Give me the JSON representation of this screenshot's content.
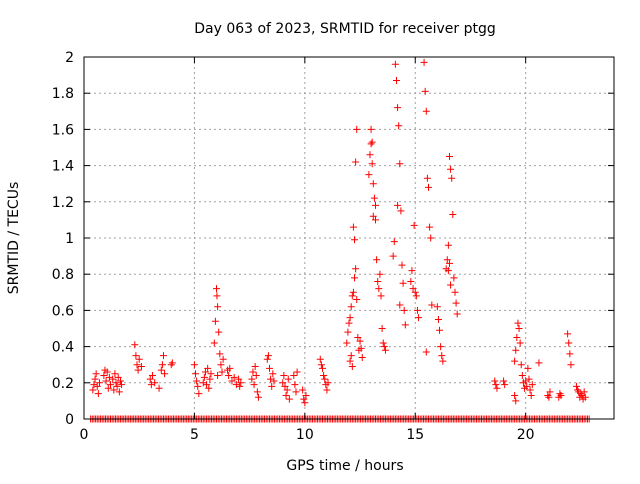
{
  "chart_data": {
    "type": "scatter",
    "title": "Day 063 of 2023, SRMTID for receiver ptgg",
    "xlabel": "GPS time / hours",
    "ylabel": "SRMTID / TECUs",
    "xlim": [
      0,
      24
    ],
    "ylim": [
      0,
      2
    ],
    "xticks": [
      0,
      5,
      10,
      15,
      20
    ],
    "xtick_labels": [
      "0",
      "5",
      "10",
      "15",
      "20"
    ],
    "yticks": [
      0,
      0.2,
      0.4,
      0.6,
      0.8,
      1,
      1.2,
      1.4,
      1.6,
      1.8,
      2
    ],
    "ytick_labels": [
      "0",
      "0.2",
      "0.4",
      "0.6",
      "0.8",
      "1",
      "1.2",
      "1.4",
      "1.6",
      "1.8",
      "2"
    ],
    "grid": true,
    "marker": "+",
    "color": "#ff0000",
    "series": [
      {
        "name": "SRMTID",
        "points": [
          [
            0.4,
            0.16
          ],
          [
            0.45,
            0.19
          ],
          [
            0.5,
            0.22
          ],
          [
            0.55,
            0.25
          ],
          [
            0.6,
            0.18
          ],
          [
            0.65,
            0.14
          ],
          [
            0.7,
            0.2
          ],
          [
            0.9,
            0.24
          ],
          [
            0.95,
            0.27
          ],
          [
            1.0,
            0.21
          ],
          [
            1.05,
            0.26
          ],
          [
            1.1,
            0.17
          ],
          [
            1.15,
            0.23
          ],
          [
            1.2,
            0.19
          ],
          [
            1.3,
            0.22
          ],
          [
            1.35,
            0.16
          ],
          [
            1.4,
            0.25
          ],
          [
            1.45,
            0.2
          ],
          [
            1.5,
            0.18
          ],
          [
            1.55,
            0.23
          ],
          [
            1.6,
            0.15
          ],
          [
            1.65,
            0.21
          ],
          [
            1.7,
            0.19
          ],
          [
            2.3,
            0.41
          ],
          [
            2.35,
            0.35
          ],
          [
            2.4,
            0.3
          ],
          [
            2.45,
            0.27
          ],
          [
            2.5,
            0.33
          ],
          [
            2.6,
            0.29
          ],
          [
            3.0,
            0.22
          ],
          [
            3.05,
            0.19
          ],
          [
            3.1,
            0.24
          ],
          [
            3.2,
            0.2
          ],
          [
            3.5,
            0.27
          ],
          [
            3.55,
            0.3
          ],
          [
            3.6,
            0.35
          ],
          [
            3.65,
            0.25
          ],
          [
            3.4,
            0.17
          ],
          [
            3.95,
            0.3
          ],
          [
            4.0,
            0.31
          ],
          [
            5.0,
            0.3
          ],
          [
            5.05,
            0.25
          ],
          [
            5.1,
            0.21
          ],
          [
            5.15,
            0.18
          ],
          [
            5.2,
            0.14
          ],
          [
            5.4,
            0.2
          ],
          [
            5.45,
            0.23
          ],
          [
            5.5,
            0.26
          ],
          [
            5.55,
            0.19
          ],
          [
            5.6,
            0.28
          ],
          [
            5.65,
            0.17
          ],
          [
            5.7,
            0.22
          ],
          [
            5.75,
            0.25
          ],
          [
            5.9,
            0.42
          ],
          [
            5.95,
            0.54
          ],
          [
            6.0,
            0.72
          ],
          [
            6.02,
            0.68
          ],
          [
            6.05,
            0.62
          ],
          [
            6.1,
            0.48
          ],
          [
            6.15,
            0.36
          ],
          [
            6.2,
            0.3
          ],
          [
            6.25,
            0.26
          ],
          [
            6.3,
            0.33
          ],
          [
            6.05,
            0.24
          ],
          [
            6.5,
            0.27
          ],
          [
            6.55,
            0.24
          ],
          [
            6.6,
            0.28
          ],
          [
            6.7,
            0.21
          ],
          [
            6.8,
            0.23
          ],
          [
            6.9,
            0.19
          ],
          [
            7.0,
            0.22
          ],
          [
            7.05,
            0.18
          ],
          [
            7.1,
            0.2
          ],
          [
            7.6,
            0.22
          ],
          [
            7.65,
            0.26
          ],
          [
            7.7,
            0.19
          ],
          [
            7.75,
            0.29
          ],
          [
            7.8,
            0.24
          ],
          [
            7.85,
            0.15
          ],
          [
            7.9,
            0.12
          ],
          [
            8.3,
            0.33
          ],
          [
            8.35,
            0.35
          ],
          [
            8.4,
            0.28
          ],
          [
            8.45,
            0.22
          ],
          [
            8.5,
            0.18
          ],
          [
            8.55,
            0.25
          ],
          [
            8.6,
            0.21
          ],
          [
            9.0,
            0.2
          ],
          [
            9.05,
            0.24
          ],
          [
            9.1,
            0.18
          ],
          [
            9.15,
            0.13
          ],
          [
            9.2,
            0.16
          ],
          [
            9.25,
            0.22
          ],
          [
            9.3,
            0.11
          ],
          [
            9.5,
            0.24
          ],
          [
            9.55,
            0.19
          ],
          [
            9.6,
            0.15
          ],
          [
            9.65,
            0.26
          ],
          [
            9.9,
            0.16
          ],
          [
            9.95,
            0.11
          ],
          [
            10.0,
            0.09
          ],
          [
            10.05,
            0.13
          ],
          [
            10.7,
            0.33
          ],
          [
            10.75,
            0.3
          ],
          [
            10.8,
            0.28
          ],
          [
            10.85,
            0.24
          ],
          [
            10.9,
            0.22
          ],
          [
            10.95,
            0.19
          ],
          [
            11.0,
            0.16
          ],
          [
            11.05,
            0.2
          ],
          [
            11.9,
            0.42
          ],
          [
            11.95,
            0.48
          ],
          [
            12.0,
            0.53
          ],
          [
            12.05,
            0.56
          ],
          [
            12.1,
            0.62
          ],
          [
            12.15,
            0.68
          ],
          [
            12.2,
            0.7
          ],
          [
            12.25,
            0.78
          ],
          [
            12.3,
            0.83
          ],
          [
            12.35,
            0.66
          ],
          [
            12.4,
            0.45
          ],
          [
            12.45,
            0.38
          ],
          [
            12.2,
            1.06
          ],
          [
            12.25,
            0.99
          ],
          [
            12.3,
            1.42
          ],
          [
            12.35,
            1.6
          ],
          [
            12.15,
            0.29
          ],
          [
            12.1,
            0.35
          ],
          [
            12.05,
            0.32
          ],
          [
            12.5,
            0.43
          ],
          [
            12.55,
            0.39
          ],
          [
            12.6,
            0.34
          ],
          [
            12.9,
            1.35
          ],
          [
            12.95,
            1.46
          ],
          [
            13.0,
            1.52
          ],
          [
            13.05,
            1.41
          ],
          [
            13.1,
            1.3
          ],
          [
            13.15,
            1.22
          ],
          [
            13.2,
            1.1
          ],
          [
            13.25,
            0.88
          ],
          [
            13.3,
            0.76
          ],
          [
            13.35,
            0.72
          ],
          [
            13.4,
            0.8
          ],
          [
            13.45,
            0.68
          ],
          [
            13.0,
            1.6
          ],
          [
            13.05,
            1.53
          ],
          [
            13.1,
            1.12
          ],
          [
            13.2,
            1.18
          ],
          [
            13.5,
            0.5
          ],
          [
            13.55,
            0.42
          ],
          [
            13.6,
            0.4
          ],
          [
            13.65,
            0.38
          ],
          [
            14.0,
            0.9
          ],
          [
            14.05,
            0.98
          ],
          [
            14.1,
            1.96
          ],
          [
            14.15,
            1.87
          ],
          [
            14.2,
            1.72
          ],
          [
            14.25,
            1.62
          ],
          [
            14.3,
            1.41
          ],
          [
            14.35,
            1.15
          ],
          [
            14.4,
            0.85
          ],
          [
            14.45,
            0.75
          ],
          [
            14.5,
            0.6
          ],
          [
            14.55,
            0.52
          ],
          [
            14.2,
            1.18
          ],
          [
            14.3,
            0.63
          ],
          [
            14.8,
            0.76
          ],
          [
            14.85,
            0.82
          ],
          [
            14.9,
            0.72
          ],
          [
            14.95,
            1.07
          ],
          [
            15.0,
            0.7
          ],
          [
            15.05,
            0.68
          ],
          [
            15.1,
            0.6
          ],
          [
            15.15,
            0.56
          ],
          [
            15.4,
            1.97
          ],
          [
            15.45,
            1.81
          ],
          [
            15.5,
            1.7
          ],
          [
            15.55,
            1.33
          ],
          [
            15.6,
            1.28
          ],
          [
            15.65,
            1.06
          ],
          [
            15.7,
            1.0
          ],
          [
            15.75,
            0.63
          ],
          [
            15.5,
            0.37
          ],
          [
            16.0,
            0.62
          ],
          [
            16.05,
            0.55
          ],
          [
            16.1,
            0.49
          ],
          [
            16.15,
            0.4
          ],
          [
            16.2,
            0.35
          ],
          [
            16.25,
            0.32
          ],
          [
            16.4,
            0.83
          ],
          [
            16.45,
            0.88
          ],
          [
            16.5,
            0.96
          ],
          [
            16.55,
            1.45
          ],
          [
            16.6,
            1.38
          ],
          [
            16.65,
            1.33
          ],
          [
            16.7,
            1.13
          ],
          [
            16.75,
            0.78
          ],
          [
            16.8,
            0.7
          ],
          [
            16.85,
            0.64
          ],
          [
            16.9,
            0.58
          ],
          [
            16.55,
            0.86
          ],
          [
            16.6,
            0.74
          ],
          [
            16.5,
            0.82
          ],
          [
            18.6,
            0.21
          ],
          [
            18.65,
            0.19
          ],
          [
            18.7,
            0.17
          ],
          [
            19.0,
            0.21
          ],
          [
            19.05,
            0.19
          ],
          [
            19.5,
            0.32
          ],
          [
            19.55,
            0.38
          ],
          [
            19.6,
            0.45
          ],
          [
            19.65,
            0.53
          ],
          [
            19.7,
            0.5
          ],
          [
            19.75,
            0.42
          ],
          [
            19.8,
            0.3
          ],
          [
            19.85,
            0.24
          ],
          [
            19.9,
            0.2
          ],
          [
            19.95,
            0.17
          ],
          [
            19.55,
            0.1
          ],
          [
            19.5,
            0.13
          ],
          [
            20.0,
            0.21
          ],
          [
            20.05,
            0.18
          ],
          [
            20.1,
            0.28
          ],
          [
            20.15,
            0.22
          ],
          [
            20.2,
            0.16
          ],
          [
            20.25,
            0.13
          ],
          [
            20.3,
            0.19
          ],
          [
            20.6,
            0.31
          ],
          [
            21.0,
            0.13
          ],
          [
            21.05,
            0.12
          ],
          [
            21.1,
            0.15
          ],
          [
            21.5,
            0.12
          ],
          [
            21.55,
            0.14
          ],
          [
            21.6,
            0.13
          ],
          [
            21.9,
            0.47
          ],
          [
            21.95,
            0.42
          ],
          [
            22.0,
            0.36
          ],
          [
            22.05,
            0.3
          ],
          [
            22.3,
            0.18
          ],
          [
            22.35,
            0.16
          ],
          [
            22.4,
            0.15
          ],
          [
            22.45,
            0.12
          ],
          [
            22.5,
            0.14
          ],
          [
            22.55,
            0.13
          ],
          [
            22.6,
            0.11
          ],
          [
            22.65,
            0.15
          ],
          [
            22.7,
            0.12
          ]
        ]
      }
    ]
  }
}
